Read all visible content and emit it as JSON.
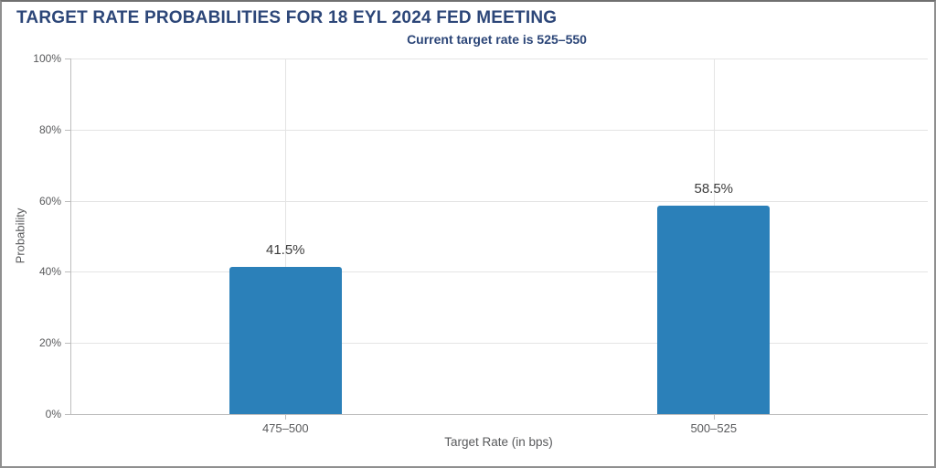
{
  "chart_data": {
    "type": "bar",
    "title": "TARGET RATE PROBABILITIES FOR 18 EYL 2024 FED MEETING",
    "subtitle": "Current target rate is 525–550",
    "categories": [
      "475–500",
      "500–525"
    ],
    "values": [
      41.5,
      58.5
    ],
    "value_labels": [
      "41.5%",
      "58.5%"
    ],
    "xlabel": "Target Rate (in bps)",
    "ylabel": "Probability",
    "ylim": [
      0,
      100
    ],
    "yticks": [
      0,
      20,
      40,
      60,
      80,
      100
    ],
    "ytick_labels": [
      "0%",
      "20%",
      "40%",
      "60%",
      "80%",
      "100%"
    ],
    "grid": true,
    "legend": "none"
  },
  "colors": {
    "heading": "#2c4678",
    "bar": "#2b80b9",
    "axis_text": "#58595b",
    "value_text": "#3c3c3c",
    "grid": "#e4e4e4",
    "axis_line": "#bdbdbd",
    "frame_border": "#8f8f8f",
    "background": "#ffffff"
  }
}
